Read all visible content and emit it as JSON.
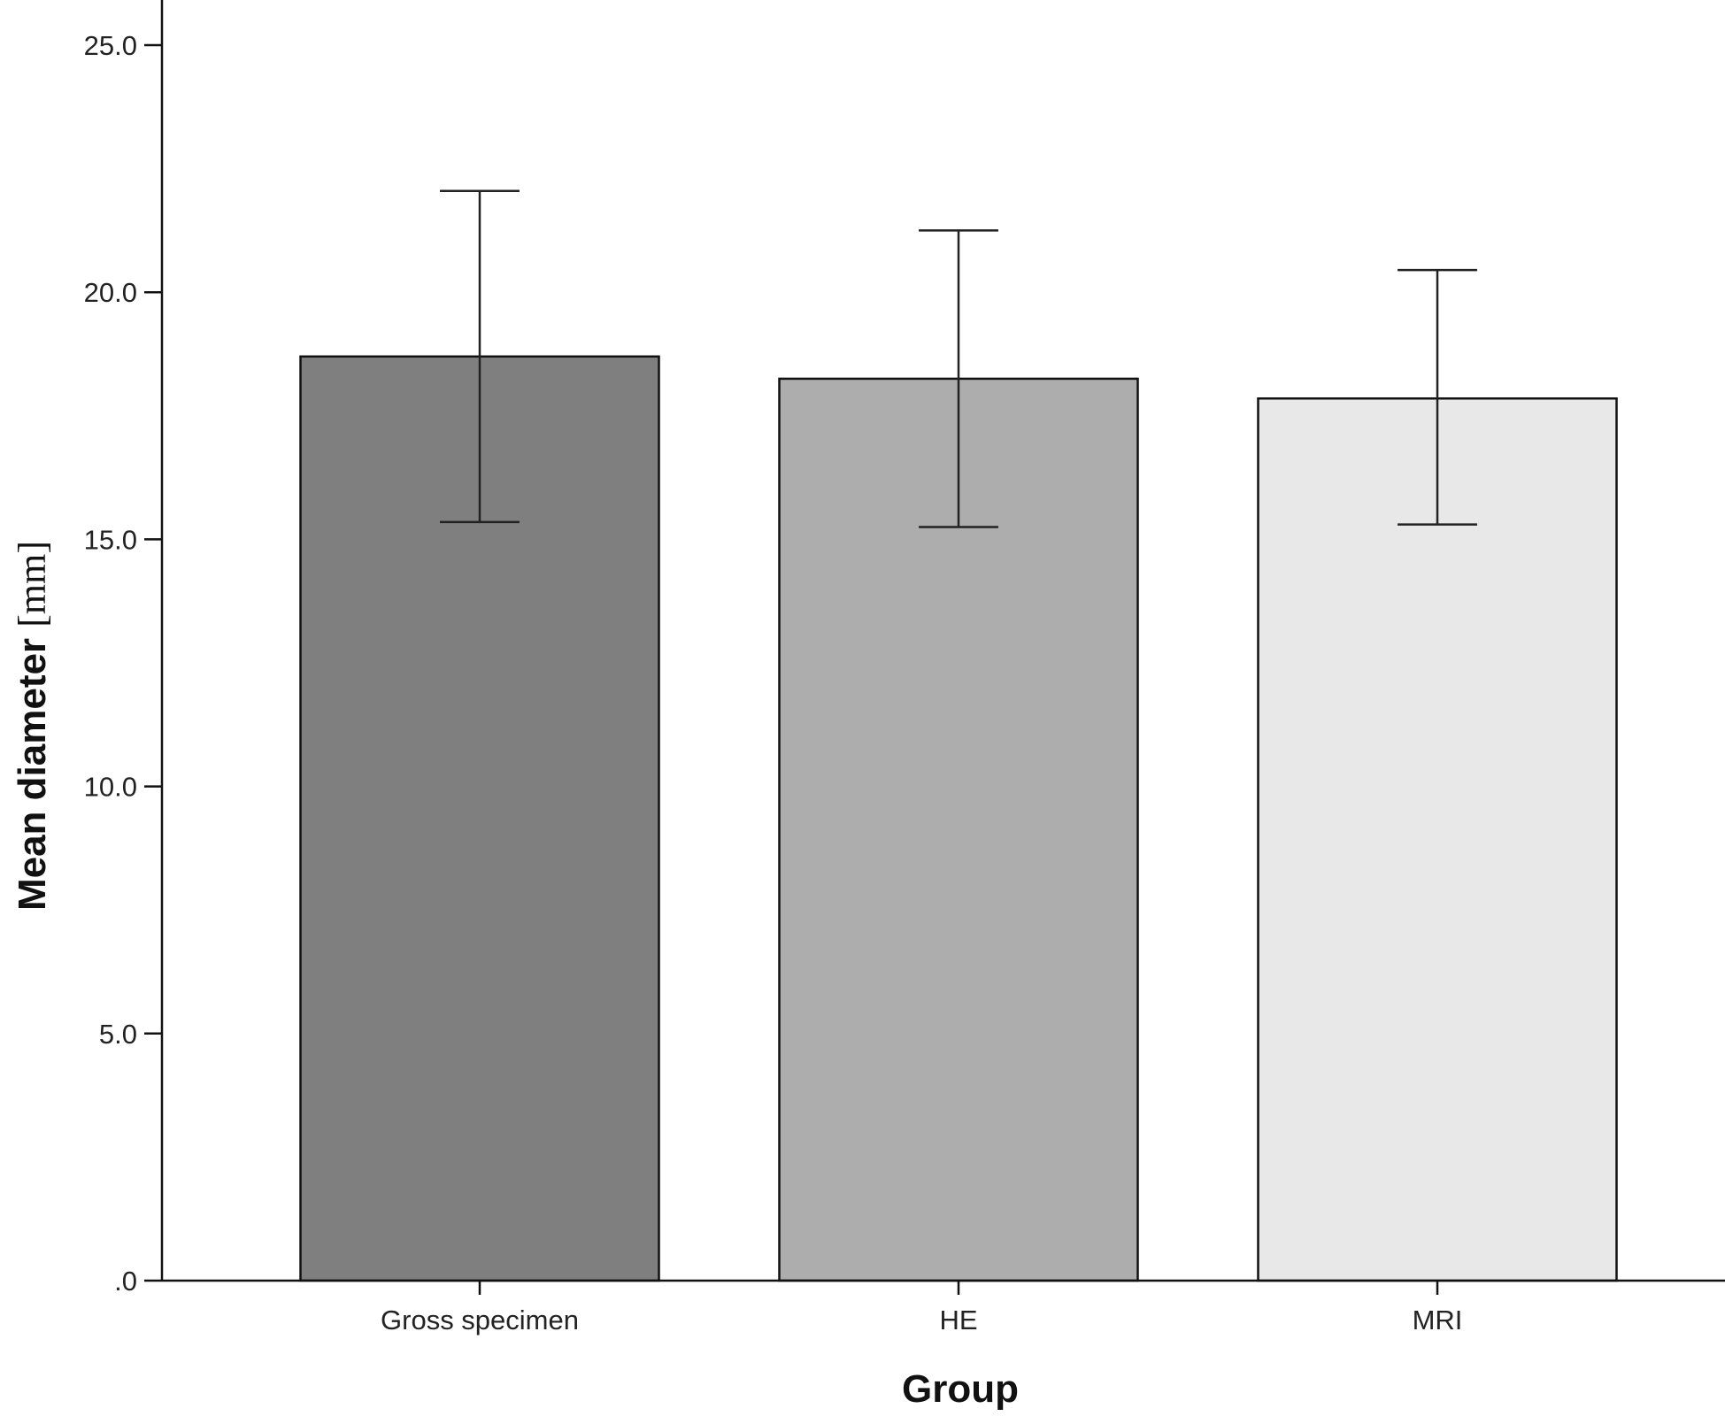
{
  "chart_data": {
    "type": "bar",
    "title": "",
    "xlabel": "Group",
    "ylabel": "Mean diameter",
    "ylabel_unit": "[mm]",
    "categories": [
      "Gross specimen",
      "HE",
      "MRI"
    ],
    "values": [
      18.7,
      18.25,
      17.85
    ],
    "error_bars": [
      {
        "low": 15.35,
        "high": 22.05
      },
      {
        "low": 15.25,
        "high": 21.25
      },
      {
        "low": 15.3,
        "high": 20.45
      }
    ],
    "colors": [
      "#7f7f7f",
      "#adadad",
      "#e8e8e8"
    ],
    "ylim": [
      0,
      25
    ],
    "yticks": [
      0,
      5,
      10,
      15,
      20,
      25
    ],
    "ytick_labels": [
      ".0",
      "5.0",
      "10.0",
      "15.0",
      "20.0",
      "25.0"
    ],
    "grid": false,
    "legend": "none"
  }
}
